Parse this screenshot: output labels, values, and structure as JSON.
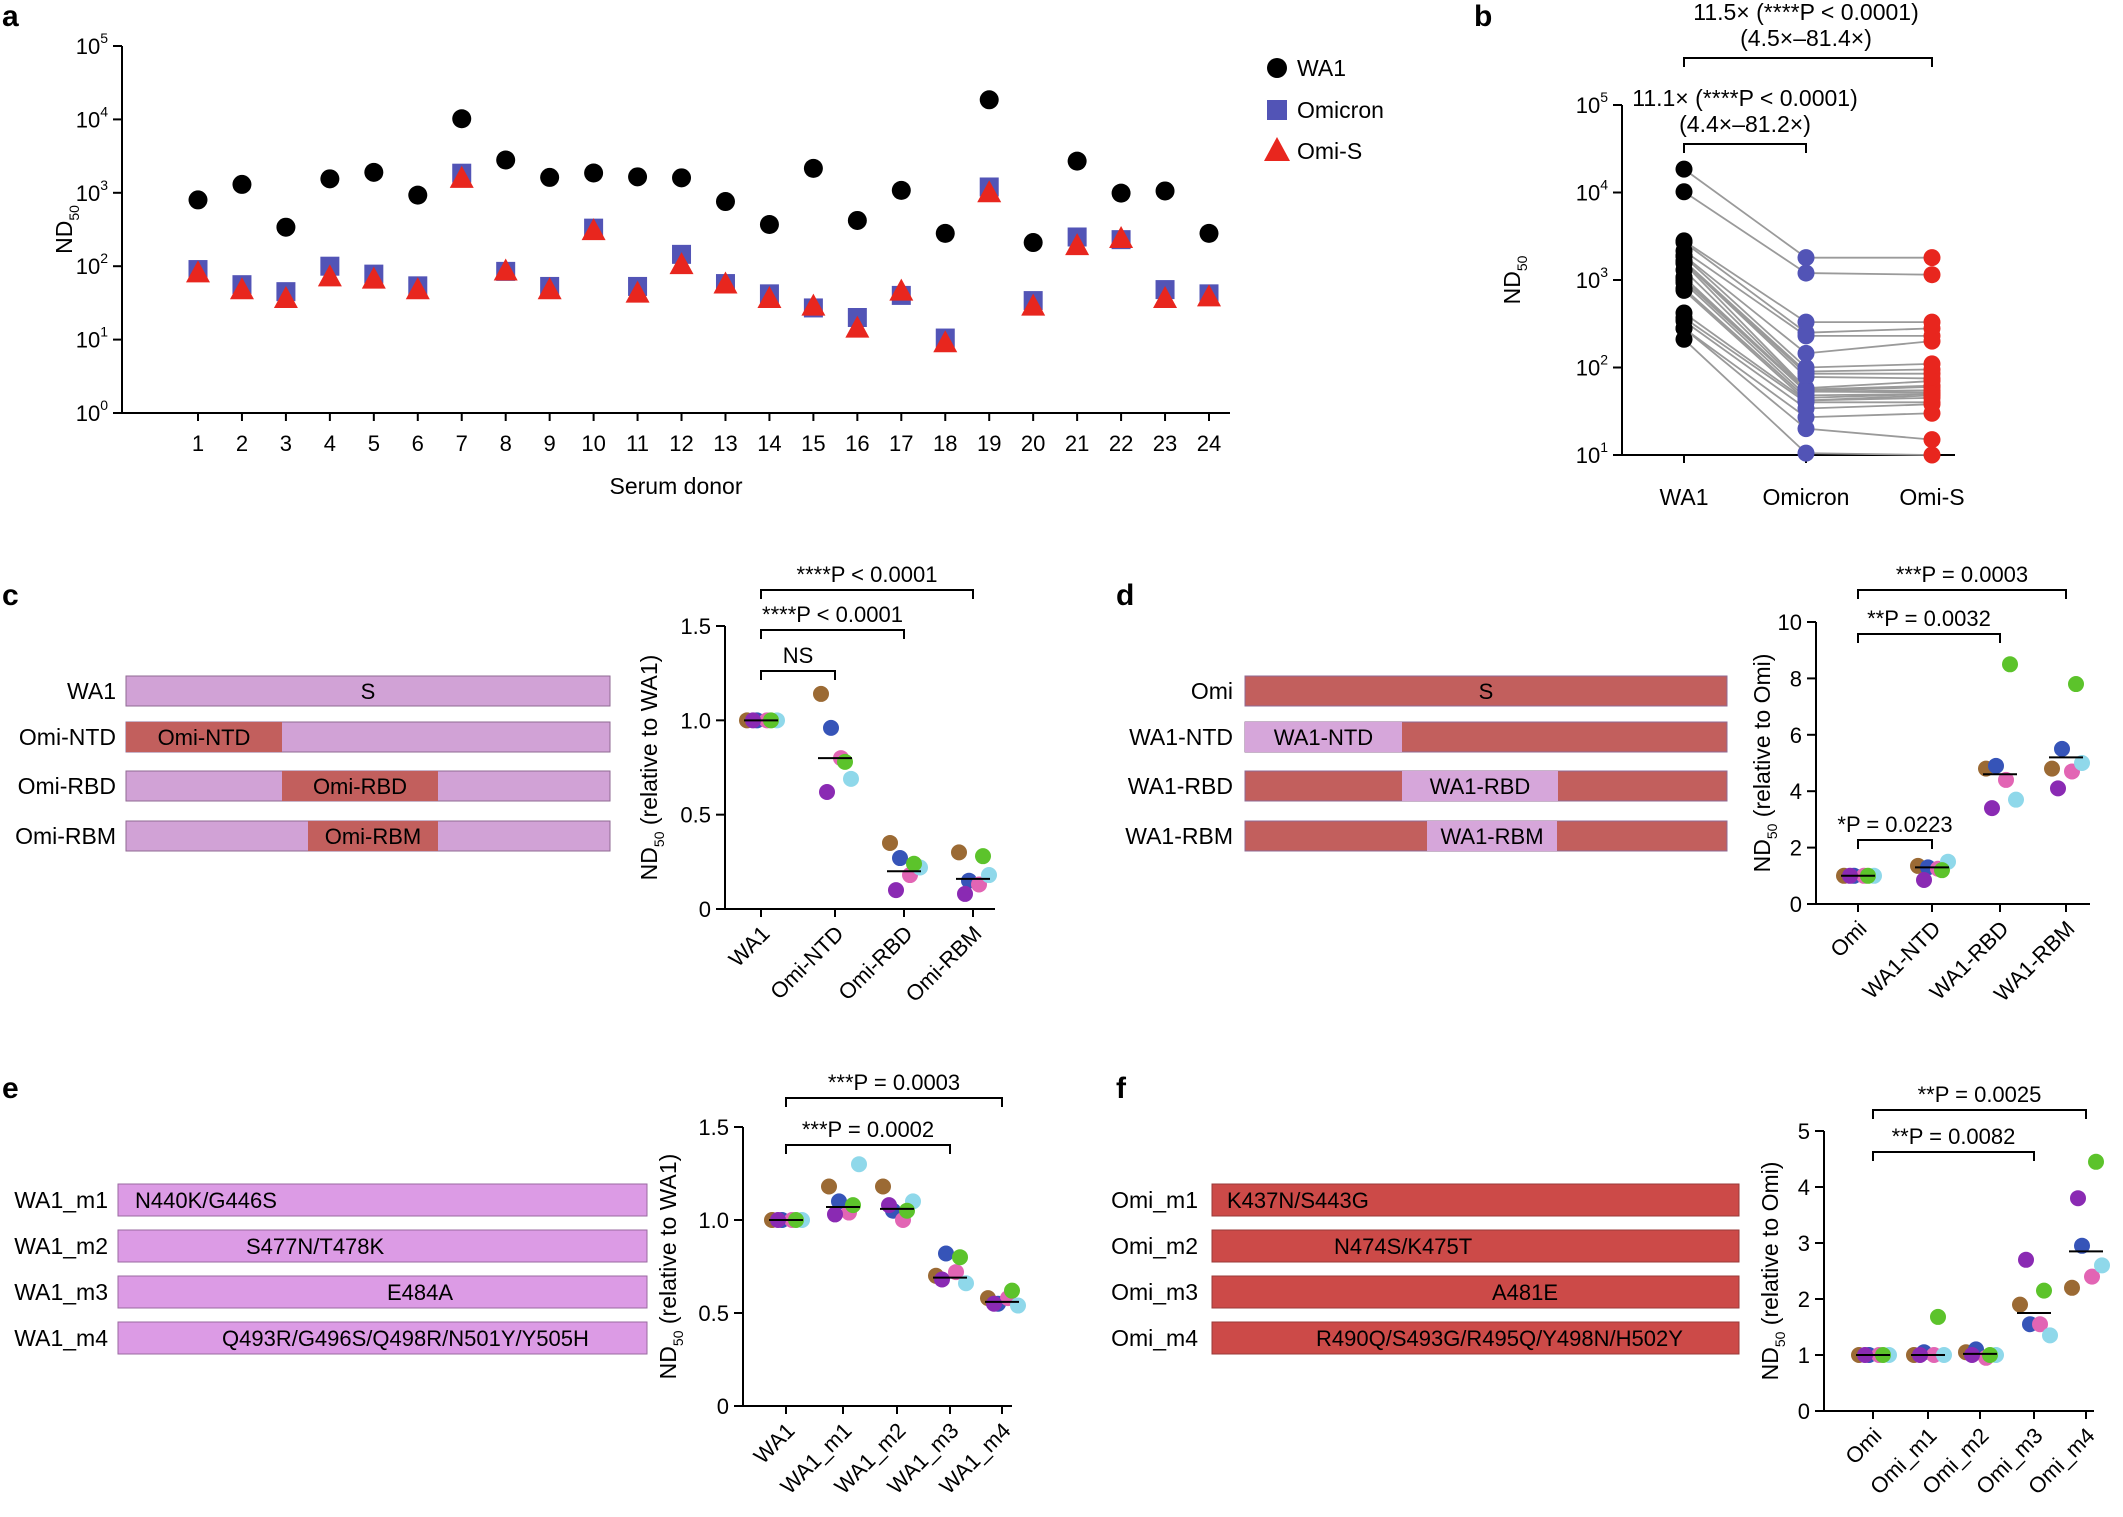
{
  "chart_data": [
    {
      "panel": "a",
      "type": "scatter",
      "xlabel": "Serum donor",
      "ylabel": "ND",
      "ylabel_sub": "50",
      "ylog": true,
      "ylim": [
        1,
        100000
      ],
      "yticks": [
        {
          "base": "10",
          "exp": "0"
        },
        {
          "base": "10",
          "exp": "1"
        },
        {
          "base": "10",
          "exp": "2"
        },
        {
          "base": "10",
          "exp": "3"
        },
        {
          "base": "10",
          "exp": "4"
        },
        {
          "base": "10",
          "exp": "5"
        }
      ],
      "categories": [
        "1",
        "2",
        "3",
        "4",
        "5",
        "6",
        "7",
        "8",
        "9",
        "10",
        "11",
        "12",
        "13",
        "14",
        "15",
        "16",
        "17",
        "18",
        "19",
        "20",
        "21",
        "22",
        "23",
        "24"
      ],
      "series": [
        {
          "name": "WA1",
          "marker": "circle",
          "color": "#000000",
          "values": [
            800,
            1300,
            340,
            1550,
            1900,
            930,
            10200,
            2800,
            1620,
            1860,
            1650,
            1600,
            760,
            370,
            2150,
            420,
            1080,
            280,
            18500,
            210,
            2700,
            990,
            1060,
            280
          ]
        },
        {
          "name": "Omicron",
          "marker": "square",
          "color": "#5254b6",
          "values": [
            90,
            56,
            45,
            100,
            78,
            54,
            1850,
            85,
            53,
            330,
            53,
            145,
            58,
            42,
            27,
            20,
            40,
            10.5,
            1200,
            34,
            250,
            230,
            48,
            42
          ]
        },
        {
          "name": "Omi-S",
          "marker": "triangle",
          "color": "#e8261e",
          "values": [
            85,
            50,
            38,
            75,
            70,
            50,
            1650,
            90,
            50,
            320,
            45,
            110,
            60,
            38,
            30,
            15,
            48,
            9.5,
            1050,
            30,
            200,
            250,
            38,
            40
          ]
        }
      ]
    },
    {
      "panel": "b",
      "type": "line",
      "ylabel": "ND",
      "ylabel_sub": "50",
      "ylog": true,
      "ylim": [
        10,
        100000
      ],
      "yticks": [
        {
          "base": "10",
          "exp": "1"
        },
        {
          "base": "10",
          "exp": "2"
        },
        {
          "base": "10",
          "exp": "3"
        },
        {
          "base": "10",
          "exp": "4"
        },
        {
          "base": "10",
          "exp": "5"
        }
      ],
      "categories": [
        "WA1",
        "Omicron",
        "Omi-S"
      ],
      "colors": [
        "#000000",
        "#5254b6",
        "#e8261e"
      ],
      "brackets": [
        {
          "from": 0,
          "to": 2,
          "line1": "11.5× (****P < 0.0001)",
          "line2": "(4.5×–81.4×)"
        },
        {
          "from": 0,
          "to": 1,
          "line1": "11.1× (****P < 0.0001)",
          "line2": "(4.4×–81.2×)"
        }
      ]
    },
    {
      "panel": "c",
      "type": "scatter",
      "ylabel": "ND",
      "ylabel_sub": "50",
      "ylabel_rest": " (relative to WA1)",
      "ylim": [
        0,
        1.5
      ],
      "yticks": [
        "0",
        "0.5",
        "1.0",
        "1.5"
      ],
      "categories": [
        "WA1",
        "Omi-NTD",
        "Omi-RBD",
        "Omi-RBM"
      ],
      "points": [
        [
          1,
          1,
          1,
          1,
          1,
          1
        ],
        [
          1.14,
          0.96,
          0.8,
          0.69,
          0.62,
          0.78
        ],
        [
          0.35,
          0.27,
          0.18,
          0.22,
          0.1,
          0.24
        ],
        [
          0.3,
          0.15,
          0.13,
          0.18,
          0.08,
          0.28
        ]
      ],
      "medians": [
        1.0,
        0.8,
        0.2,
        0.16
      ],
      "brackets": [
        {
          "from": 0,
          "to": 3,
          "label": "****P < 0.0001"
        },
        {
          "from": 0,
          "to": 2,
          "label": "****P < 0.0001"
        },
        {
          "from": 0,
          "to": 1,
          "label": "NS"
        }
      ]
    },
    {
      "panel": "d",
      "type": "scatter",
      "ylabel": "ND",
      "ylabel_sub": "50",
      "ylabel_rest": " (relative to Omi)",
      "ylim": [
        0,
        10
      ],
      "yticks": [
        "0",
        "2",
        "4",
        "6",
        "8",
        "10"
      ],
      "categories": [
        "Omi",
        "WA1-NTD",
        "WA1-RBD",
        "WA1-RBM"
      ],
      "points": [
        [
          1,
          1,
          1,
          1,
          1,
          1
        ],
        [
          1.35,
          1.3,
          1.25,
          1.5,
          0.85,
          1.2
        ],
        [
          4.8,
          4.9,
          4.4,
          3.7,
          3.4,
          8.5
        ],
        [
          4.8,
          5.5,
          4.7,
          5.0,
          4.1,
          7.8
        ]
      ],
      "medians": [
        1.0,
        1.3,
        4.6,
        5.2
      ],
      "brackets": [
        {
          "from": 0,
          "to": 3,
          "label": "***P = 0.0003"
        },
        {
          "from": 0,
          "to": 2,
          "label": "**P = 0.0032"
        },
        {
          "from": 0,
          "to": 1,
          "label": "*P = 0.0223"
        }
      ]
    },
    {
      "panel": "e",
      "type": "scatter",
      "ylabel": "ND",
      "ylabel_sub": "50",
      "ylabel_rest": " (relative to WA1)",
      "ylim": [
        0,
        1.5
      ],
      "yticks": [
        "0",
        "0.5",
        "1.0",
        "1.5"
      ],
      "categories": [
        "WA1",
        "WA1_m1",
        "WA1_m2",
        "WA1_m3",
        "WA1_m4"
      ],
      "points": [
        [
          1,
          1,
          1,
          1,
          1,
          1
        ],
        [
          1.18,
          1.1,
          1.04,
          1.3,
          1.03,
          1.08
        ],
        [
          1.18,
          1.05,
          1.0,
          1.1,
          1.08,
          1.05
        ],
        [
          0.7,
          0.82,
          0.72,
          0.66,
          0.68,
          0.8
        ],
        [
          0.58,
          0.55,
          0.58,
          0.54,
          0.55,
          0.62
        ]
      ],
      "medians": [
        1.0,
        1.07,
        1.06,
        0.69,
        0.56
      ],
      "brackets": [
        {
          "from": 0,
          "to": 4,
          "label": "***P = 0.0003"
        },
        {
          "from": 0,
          "to": 3,
          "label": "***P = 0.0002"
        }
      ]
    },
    {
      "panel": "f",
      "type": "scatter",
      "ylabel": "ND",
      "ylabel_sub": "50",
      "ylabel_rest": " (relative to Omi)",
      "ylim": [
        0,
        5
      ],
      "yticks": [
        "0",
        "1",
        "2",
        "3",
        "4",
        "5"
      ],
      "categories": [
        "Omi",
        "Omi_m1",
        "Omi_m2",
        "Omi_m3",
        "Omi_m4"
      ],
      "points": [
        [
          1,
          1,
          1,
          1,
          1,
          1
        ],
        [
          1.0,
          1.05,
          1.0,
          1.0,
          1.0,
          1.68
        ],
        [
          1.05,
          1.1,
          0.95,
          1.0,
          1.0,
          1.0
        ],
        [
          1.9,
          1.55,
          1.55,
          1.35,
          2.7,
          2.15
        ],
        [
          2.2,
          2.95,
          2.4,
          2.6,
          3.8,
          4.45
        ]
      ],
      "medians": [
        1.0,
        1.0,
        1.02,
        1.75,
        2.85
      ],
      "brackets": [
        {
          "from": 0,
          "to": 4,
          "label": "**P = 0.0025"
        },
        {
          "from": 0,
          "to": 3,
          "label": "**P = 0.0082"
        }
      ]
    }
  ],
  "dot_colors": [
    "#9b6a34",
    "#3654b8",
    "#e265b4",
    "#8fd8ea",
    "#8a2ab3",
    "#5cc32b"
  ],
  "panel_b_lines": [
    [
      18500,
      1800,
      1800
    ],
    [
      10200,
      1200,
      1150
    ],
    [
      2800,
      330,
      330
    ],
    [
      2700,
      250,
      280
    ],
    [
      2150,
      230,
      230
    ],
    [
      1900,
      145,
      200
    ],
    [
      1860,
      100,
      110
    ],
    [
      1650,
      90,
      95
    ],
    [
      1620,
      85,
      85
    ],
    [
      1600,
      78,
      75
    ],
    [
      1550,
      58,
      70
    ],
    [
      1300,
      56,
      62
    ],
    [
      1080,
      54,
      60
    ],
    [
      1060,
      53,
      55
    ],
    [
      990,
      53,
      52
    ],
    [
      930,
      48,
      50
    ],
    [
      800,
      45,
      50
    ],
    [
      760,
      42,
      48
    ],
    [
      420,
      42,
      45
    ],
    [
      370,
      40,
      40
    ],
    [
      340,
      34,
      38
    ],
    [
      280,
      27,
      30
    ],
    [
      280,
      20,
      15
    ],
    [
      210,
      10.5,
      10
    ]
  ],
  "constructs": {
    "c": {
      "bg": "#d1a2d6",
      "seg": "#c25f5d",
      "text_dark": "#000000",
      "text_seg": "#ffffff",
      "rows": [
        {
          "label": "WA1",
          "center": "S"
        },
        {
          "label": "Omi-NTD",
          "seg": "Omi-NTD"
        },
        {
          "label": "Omi-RBD",
          "seg": "Omi-RBD"
        },
        {
          "label": "Omi-RBM",
          "seg": "Omi-RBM"
        }
      ]
    },
    "d": {
      "bg": "#c25f5d",
      "seg": "#d6a6da",
      "text_dark": "#000000",
      "text_seg": "#ffffff",
      "rows": [
        {
          "label": "Omi",
          "center": "S"
        },
        {
          "label": "WA1-NTD",
          "seg": "WA1-NTD"
        },
        {
          "label": "WA1-RBD",
          "seg": "WA1-RBD"
        },
        {
          "label": "WA1-RBM",
          "seg": "WA1-RBM"
        }
      ]
    },
    "e": {
      "bg": "#dc9be5",
      "rows": [
        {
          "label": "WA1_m1",
          "mut": "N440K/G446S"
        },
        {
          "label": "WA1_m2",
          "mut": "S477N/T478K"
        },
        {
          "label": "WA1_m3",
          "mut": "E484A"
        },
        {
          "label": "WA1_m4",
          "mut": "Q493R/G496S/Q498R/N501Y/Y505H"
        }
      ]
    },
    "f": {
      "bg": "#cc4a48",
      "rows": [
        {
          "label": "Omi_m1",
          "mut": "K437N/S443G"
        },
        {
          "label": "Omi_m2",
          "mut": "N474S/K475T"
        },
        {
          "label": "Omi_m3",
          "mut": "A481E"
        },
        {
          "label": "Omi_m4",
          "mut": "R490Q/S493G/R495Q/Y498N/H502Y"
        }
      ]
    }
  },
  "panel_labels": [
    "a",
    "b",
    "c",
    "d",
    "e",
    "f"
  ]
}
